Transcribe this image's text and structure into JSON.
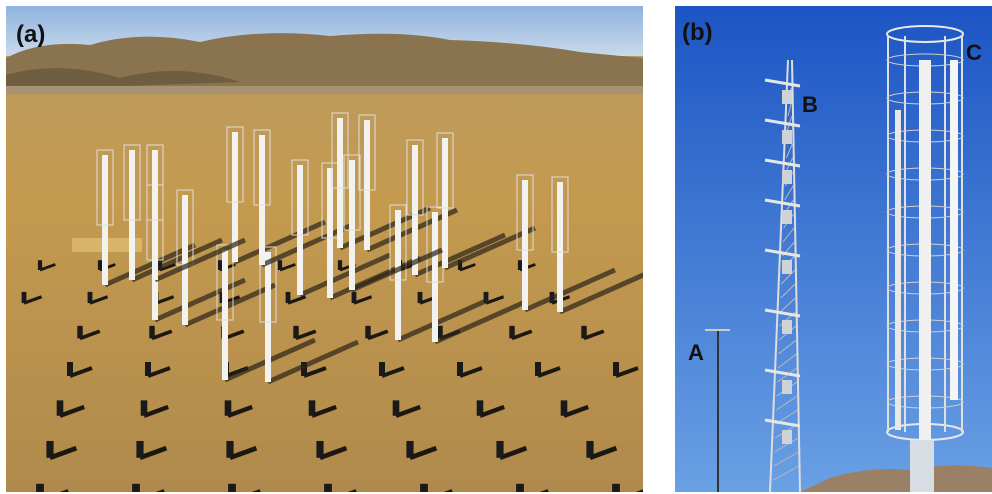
{
  "panels": [
    {
      "label": "(a)"
    },
    {
      "label": "(b)",
      "annotations": [
        "A",
        "B",
        "C"
      ]
    }
  ]
}
